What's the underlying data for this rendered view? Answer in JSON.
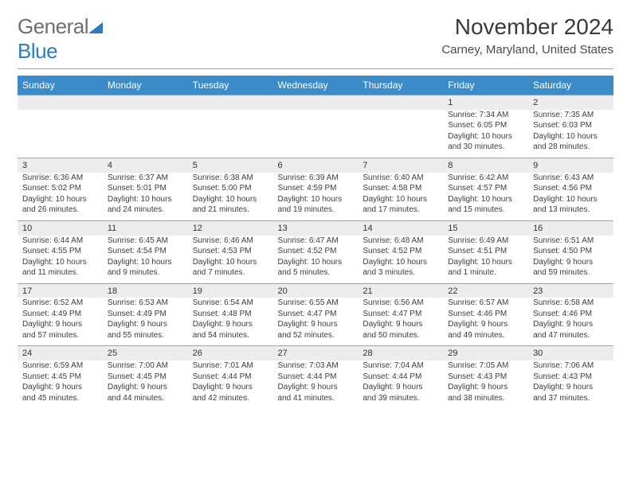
{
  "logo": {
    "gray": "General",
    "blue": "Blue"
  },
  "title": "November 2024",
  "location": "Carney, Maryland, United States",
  "colors": {
    "header_bg": "#3b8bc9",
    "header_text": "#ffffff",
    "daynum_bg": "#ededed",
    "rule": "#9fa2a6",
    "text": "#3d3d3d",
    "logo_gray": "#6e6e6e",
    "logo_blue": "#2d7cc1"
  },
  "day_headers": [
    "Sunday",
    "Monday",
    "Tuesday",
    "Wednesday",
    "Thursday",
    "Friday",
    "Saturday"
  ],
  "weeks": [
    {
      "nums": [
        "",
        "",
        "",
        "",
        "",
        "1",
        "2"
      ],
      "cells": [
        [],
        [],
        [],
        [],
        [],
        [
          "Sunrise: 7:34 AM",
          "Sunset: 6:05 PM",
          "Daylight: 10 hours",
          "and 30 minutes."
        ],
        [
          "Sunrise: 7:35 AM",
          "Sunset: 6:03 PM",
          "Daylight: 10 hours",
          "and 28 minutes."
        ]
      ]
    },
    {
      "nums": [
        "3",
        "4",
        "5",
        "6",
        "7",
        "8",
        "9"
      ],
      "cells": [
        [
          "Sunrise: 6:36 AM",
          "Sunset: 5:02 PM",
          "Daylight: 10 hours",
          "and 26 minutes."
        ],
        [
          "Sunrise: 6:37 AM",
          "Sunset: 5:01 PM",
          "Daylight: 10 hours",
          "and 24 minutes."
        ],
        [
          "Sunrise: 6:38 AM",
          "Sunset: 5:00 PM",
          "Daylight: 10 hours",
          "and 21 minutes."
        ],
        [
          "Sunrise: 6:39 AM",
          "Sunset: 4:59 PM",
          "Daylight: 10 hours",
          "and 19 minutes."
        ],
        [
          "Sunrise: 6:40 AM",
          "Sunset: 4:58 PM",
          "Daylight: 10 hours",
          "and 17 minutes."
        ],
        [
          "Sunrise: 6:42 AM",
          "Sunset: 4:57 PM",
          "Daylight: 10 hours",
          "and 15 minutes."
        ],
        [
          "Sunrise: 6:43 AM",
          "Sunset: 4:56 PM",
          "Daylight: 10 hours",
          "and 13 minutes."
        ]
      ]
    },
    {
      "nums": [
        "10",
        "11",
        "12",
        "13",
        "14",
        "15",
        "16"
      ],
      "cells": [
        [
          "Sunrise: 6:44 AM",
          "Sunset: 4:55 PM",
          "Daylight: 10 hours",
          "and 11 minutes."
        ],
        [
          "Sunrise: 6:45 AM",
          "Sunset: 4:54 PM",
          "Daylight: 10 hours",
          "and 9 minutes."
        ],
        [
          "Sunrise: 6:46 AM",
          "Sunset: 4:53 PM",
          "Daylight: 10 hours",
          "and 7 minutes."
        ],
        [
          "Sunrise: 6:47 AM",
          "Sunset: 4:52 PM",
          "Daylight: 10 hours",
          "and 5 minutes."
        ],
        [
          "Sunrise: 6:48 AM",
          "Sunset: 4:52 PM",
          "Daylight: 10 hours",
          "and 3 minutes."
        ],
        [
          "Sunrise: 6:49 AM",
          "Sunset: 4:51 PM",
          "Daylight: 10 hours",
          "and 1 minute."
        ],
        [
          "Sunrise: 6:51 AM",
          "Sunset: 4:50 PM",
          "Daylight: 9 hours",
          "and 59 minutes."
        ]
      ]
    },
    {
      "nums": [
        "17",
        "18",
        "19",
        "20",
        "21",
        "22",
        "23"
      ],
      "cells": [
        [
          "Sunrise: 6:52 AM",
          "Sunset: 4:49 PM",
          "Daylight: 9 hours",
          "and 57 minutes."
        ],
        [
          "Sunrise: 6:53 AM",
          "Sunset: 4:49 PM",
          "Daylight: 9 hours",
          "and 55 minutes."
        ],
        [
          "Sunrise: 6:54 AM",
          "Sunset: 4:48 PM",
          "Daylight: 9 hours",
          "and 54 minutes."
        ],
        [
          "Sunrise: 6:55 AM",
          "Sunset: 4:47 PM",
          "Daylight: 9 hours",
          "and 52 minutes."
        ],
        [
          "Sunrise: 6:56 AM",
          "Sunset: 4:47 PM",
          "Daylight: 9 hours",
          "and 50 minutes."
        ],
        [
          "Sunrise: 6:57 AM",
          "Sunset: 4:46 PM",
          "Daylight: 9 hours",
          "and 49 minutes."
        ],
        [
          "Sunrise: 6:58 AM",
          "Sunset: 4:46 PM",
          "Daylight: 9 hours",
          "and 47 minutes."
        ]
      ]
    },
    {
      "nums": [
        "24",
        "25",
        "26",
        "27",
        "28",
        "29",
        "30"
      ],
      "cells": [
        [
          "Sunrise: 6:59 AM",
          "Sunset: 4:45 PM",
          "Daylight: 9 hours",
          "and 45 minutes."
        ],
        [
          "Sunrise: 7:00 AM",
          "Sunset: 4:45 PM",
          "Daylight: 9 hours",
          "and 44 minutes."
        ],
        [
          "Sunrise: 7:01 AM",
          "Sunset: 4:44 PM",
          "Daylight: 9 hours",
          "and 42 minutes."
        ],
        [
          "Sunrise: 7:03 AM",
          "Sunset: 4:44 PM",
          "Daylight: 9 hours",
          "and 41 minutes."
        ],
        [
          "Sunrise: 7:04 AM",
          "Sunset: 4:44 PM",
          "Daylight: 9 hours",
          "and 39 minutes."
        ],
        [
          "Sunrise: 7:05 AM",
          "Sunset: 4:43 PM",
          "Daylight: 9 hours",
          "and 38 minutes."
        ],
        [
          "Sunrise: 7:06 AM",
          "Sunset: 4:43 PM",
          "Daylight: 9 hours",
          "and 37 minutes."
        ]
      ]
    }
  ]
}
